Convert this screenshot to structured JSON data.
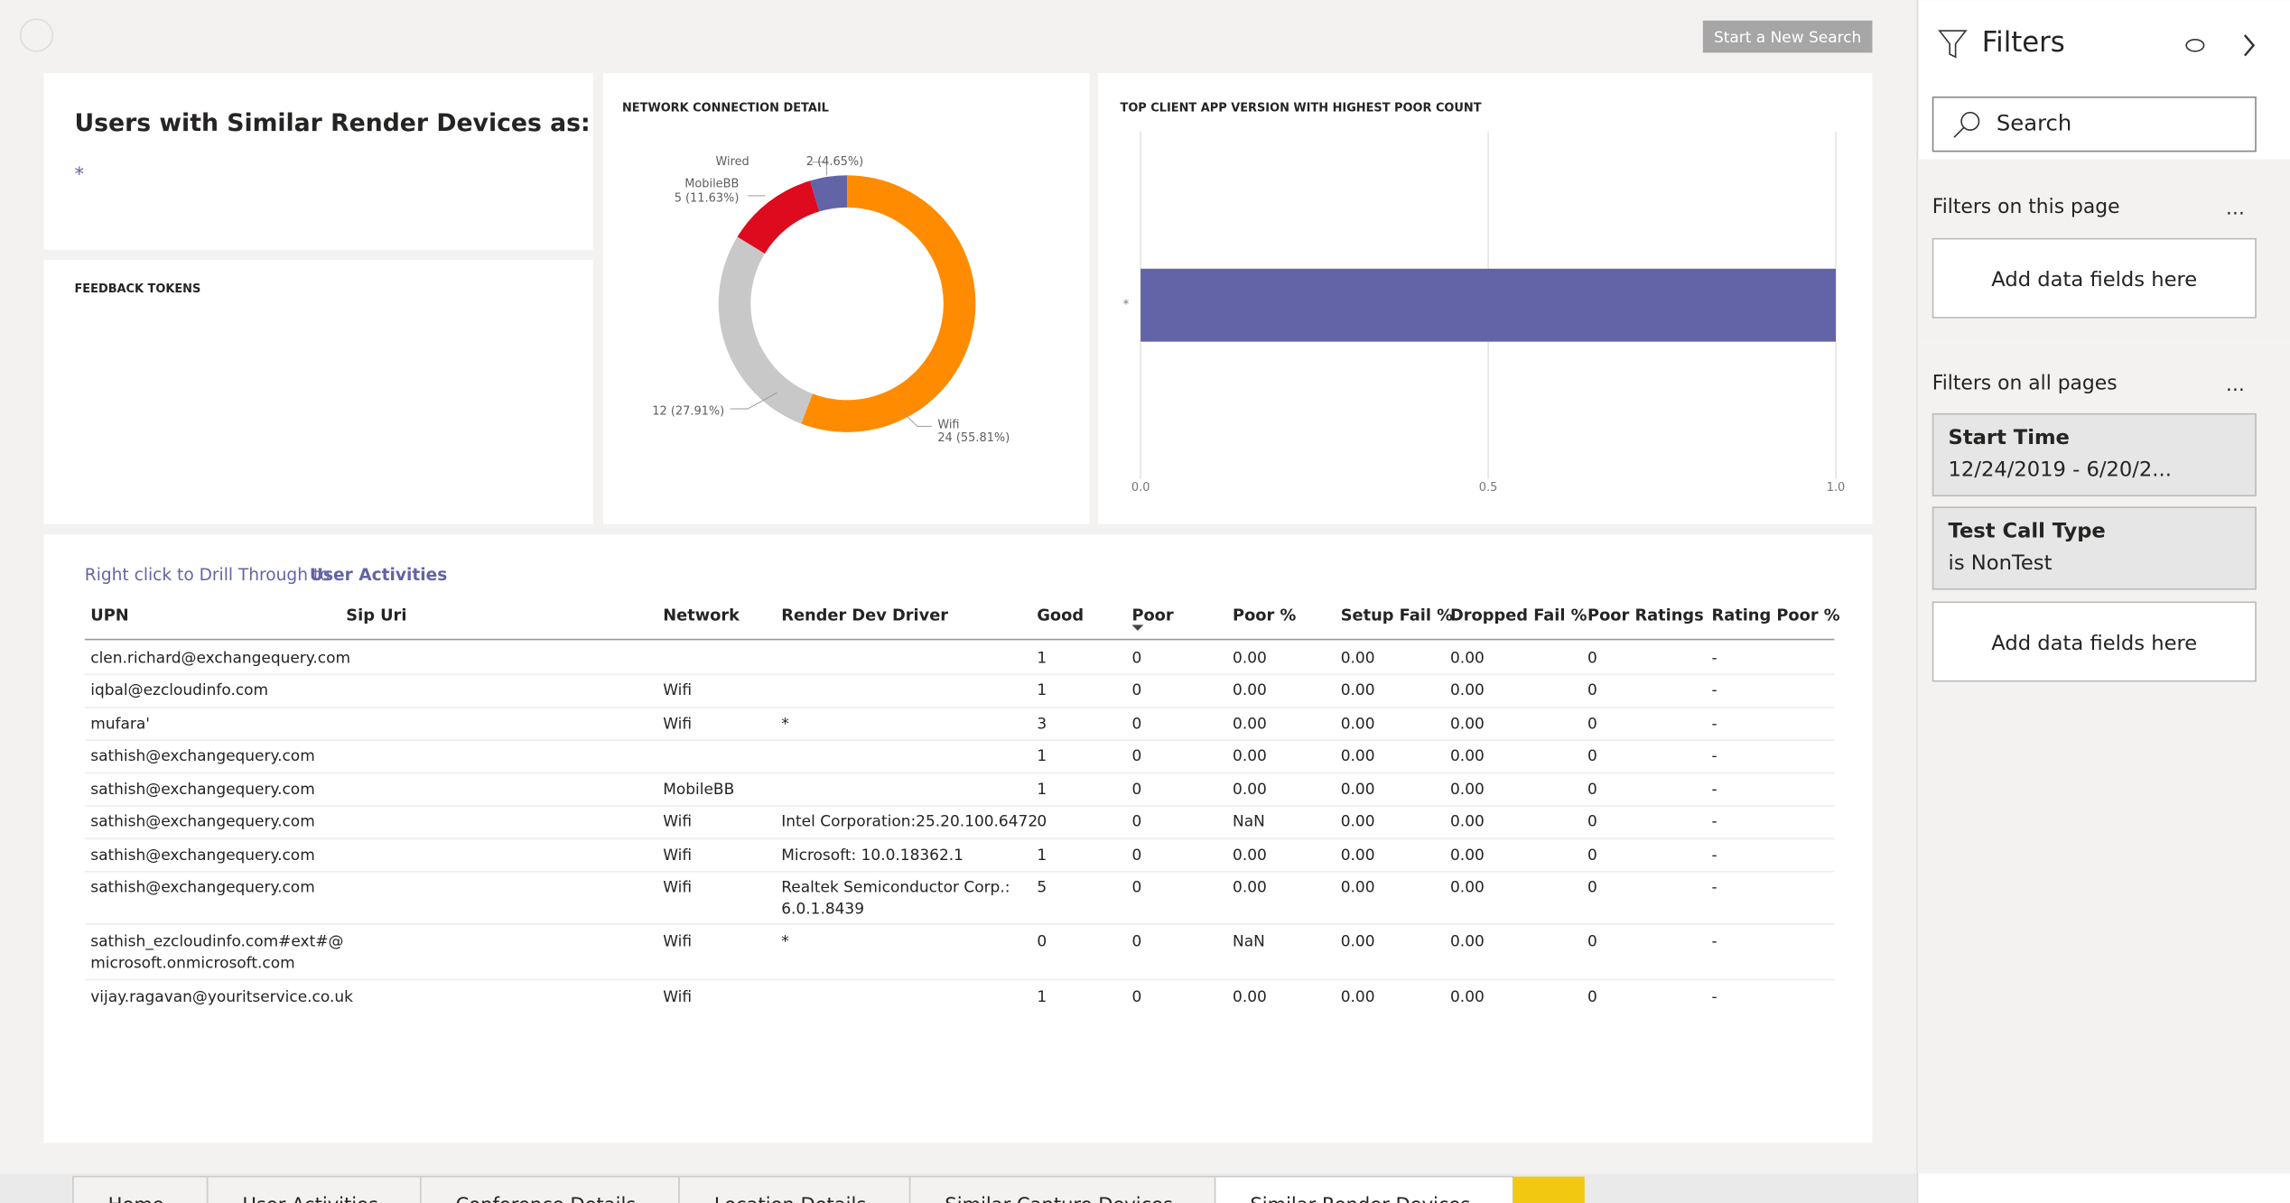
{
  "header": {
    "button": "Start a New Search"
  },
  "card_title": {
    "title": "Users with Similar Render Devices as:",
    "value": "*"
  },
  "feedback": {
    "title": "FEEDBACK TOKENS"
  },
  "donut": {
    "type": "pie",
    "title": "NETWORK CONNECTION DETAIL",
    "categories": [
      "Wifi",
      null,
      "MobileBB",
      "Wired"
    ],
    "values": [
      24,
      12,
      5,
      2
    ],
    "value_labels": [
      "24 (55.81%)",
      "12 (27.91%)",
      "5 (11.63%)",
      "2 (4.65%)"
    ],
    "colors": [
      "#ff8c00",
      "#c8c8c8",
      "#de0a1e",
      "#6264a7"
    ]
  },
  "bar_chart": {
    "type": "bar",
    "title": "TOP CLIENT APP VERSION WITH HIGHEST POOR COUNT",
    "categories": [
      "*"
    ],
    "values": [
      1
    ],
    "color": "#6264a7",
    "xlim": [
      0,
      1
    ],
    "xticks": [
      {
        "value": 0,
        "label": "0.0"
      },
      {
        "value": 0.5,
        "label": "0.5"
      },
      {
        "value": 1,
        "label": "1.0"
      }
    ],
    "grid": true
  },
  "table": {
    "drill_text": "Right click to Drill Through to",
    "drill_link": "User Activities",
    "columns": [
      "UPN",
      "Sip Uri",
      "Network",
      "Render Dev Driver",
      "Good",
      "Poor",
      "Poor %",
      "Setup Fail %",
      "Dropped Fail %",
      "Poor Ratings",
      "Rating Poor %"
    ],
    "rows": [
      [
        "clen.richard@exchangequery.com",
        null,
        null,
        null,
        "1",
        "0",
        "0.00",
        "0.00",
        "0.00",
        "0",
        "-"
      ],
      [
        "iqbal@ezcloudinfo.com",
        null,
        "Wifi",
        null,
        "1",
        "0",
        "0.00",
        "0.00",
        "0.00",
        "0",
        "-"
      ],
      [
        "mufara'",
        null,
        "Wifi",
        "*",
        "3",
        "0",
        "0.00",
        "0.00",
        "0.00",
        "0",
        "-"
      ],
      [
        "sathish@exchangequery.com",
        null,
        null,
        null,
        "1",
        "0",
        "0.00",
        "0.00",
        "0.00",
        "0",
        "-"
      ],
      [
        "sathish@exchangequery.com",
        null,
        "MobileBB",
        null,
        "1",
        "0",
        "0.00",
        "0.00",
        "0.00",
        "0",
        "-"
      ],
      [
        "sathish@exchangequery.com",
        null,
        "Wifi",
        "Intel Corporation:25.20.100.6472",
        "0",
        "0",
        "NaN",
        "0.00",
        "0.00",
        "0",
        "-"
      ],
      [
        "sathish@exchangequery.com",
        null,
        "Wifi",
        "Microsoft: 10.0.18362.1",
        "1",
        "0",
        "0.00",
        "0.00",
        "0.00",
        "0",
        "-"
      ],
      [
        "sathish@exchangequery.com",
        null,
        "Wifi",
        [
          "Realtek Semiconductor Corp.:",
          "6.0.1.8439"
        ],
        "5",
        "0",
        "0.00",
        "0.00",
        "0.00",
        "0",
        "-"
      ],
      [
        [
          "sathish_ezcloudinfo.com#ext#@",
          "microsoft.onmicrosoft.com"
        ],
        null,
        "Wifi",
        "*",
        "0",
        "0",
        "NaN",
        "0.00",
        "0.00",
        "0",
        "-"
      ],
      [
        "vijay.ragavan@youritservice.co.uk",
        null,
        "Wifi",
        null,
        "1",
        "0",
        "0.00",
        "0.00",
        "0.00",
        "0",
        "-"
      ]
    ]
  },
  "filters": {
    "title": "Filters",
    "search": "Search",
    "page_section": "Filters on this page",
    "page_add": "Add data fields here",
    "all_section": "Filters on all pages",
    "cards": [
      {
        "name": "Start Time",
        "value": "12/24/2019 - 6/20/2..."
      },
      {
        "name": "Test Call Type",
        "value": "is NonTest"
      }
    ],
    "all_add": "Add data fields here"
  },
  "tabs": [
    "Home",
    "User Activities",
    "Conference Details",
    "Location Details",
    "Similar Capture Devices",
    "Similar Render Devices"
  ]
}
